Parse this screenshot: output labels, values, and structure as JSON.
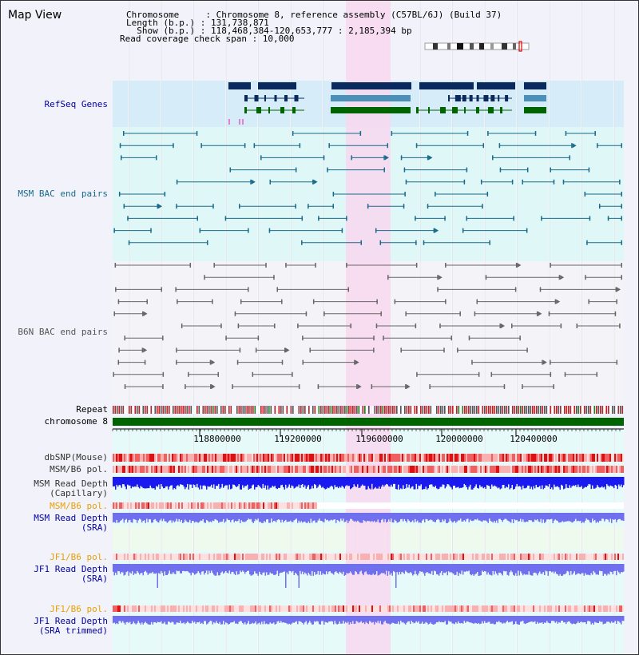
{
  "header": {
    "title": "Map View",
    "info_lines": [
      "Chromosome     : Chromosome 8, reference assembly (C57BL/6J) (Build 37)",
      "Length (b.p.) : 131,738,871",
      "  Show (b.p.) : 118,468,384-120,653,777 : 2,185,394 bp",
      "Read coverage check span : 10,000"
    ]
  },
  "tracks": {
    "refseq": "RefSeq Genes",
    "msm_bac": "MSM BAC end pairs",
    "b6n_bac": "B6N BAC end pairs",
    "repeat": "Repeat",
    "chromosome": "chromosome 8",
    "dbsnp": "dbSNP(Mouse)",
    "msm_b6_pol_1": "MSM/B6 pol.",
    "msm_read_depth_cap_1": "MSM Read Depth",
    "msm_read_depth_cap_2": "(Capillary)",
    "msm_b6_pol_2": "MSM/B6 pol.",
    "msm_read_depth_sra_1": "MSM Read Depth",
    "msm_read_depth_sra_2": "(SRA)",
    "jf1_b6_pol_1": "JF1/B6 pol.",
    "jf1_read_depth_sra_1": "JF1 Read Depth",
    "jf1_read_depth_sra_2": "(SRA)",
    "jf1_b6_pol_2": "JF1/B6 pol.",
    "jf1_read_depth_trim_1": "JF1 Read Depth",
    "jf1_read_depth_trim_2": "(SRA trimmed)"
  },
  "ruler": {
    "ticks": [
      "118800000",
      "119200000",
      "119600000",
      "120000000",
      "120400000"
    ]
  },
  "colors": {
    "refseq_bg": "#d6ecf8",
    "msm_bg": "#dff7f7",
    "b6n_bg": "#f4f4f8",
    "cyan_bg": "#e6fafa",
    "green_bg": "#eefaee",
    "highlight": "#f8d8f0",
    "gene_dark": "#0a2a5e",
    "gene_mid": "#4a90b8",
    "gene_green": "#006400",
    "msm_bac": "#1a6a8a",
    "b6n_bac": "#666666",
    "chromosome": "#006400",
    "label_blue": "#0000a0",
    "label_teal": "#1a6a8a",
    "label_gray": "#555555",
    "label_orange": "#e8a000",
    "depth_blue": "#1a1aee",
    "depth_light": "#7070ee"
  }
}
